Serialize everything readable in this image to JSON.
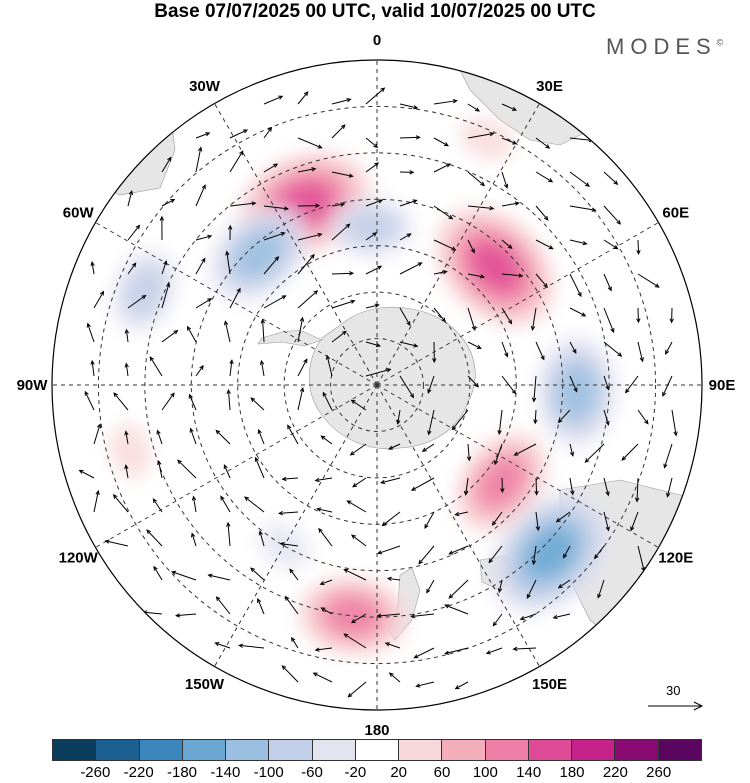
{
  "title": "Base 07/07/2025 00 UTC, valid 10/07/2025 00 UTC",
  "brand": "MODES",
  "brand_mark": "©",
  "map": {
    "projection": "south-polar-stereographic",
    "longitude_labels": [
      "0",
      "30E",
      "60E",
      "90E",
      "120E",
      "150E",
      "180",
      "150W",
      "120W",
      "90W",
      "60W",
      "30W"
    ],
    "land_color": "#e6e6e6",
    "grid_style": "dashed"
  },
  "reference_vector": {
    "value": "30"
  },
  "colorbar": {
    "ticks": [
      "-260",
      "-220",
      "-180",
      "-140",
      "-100",
      "-60",
      "-20",
      "20",
      "60",
      "100",
      "140",
      "180",
      "220",
      "260"
    ],
    "colors": [
      "#0b3d5e",
      "#1a5f8f",
      "#3a86bd",
      "#6aa7d3",
      "#9bbfe0",
      "#c3cfe8",
      "#e4e4f1",
      "#ffffff",
      "#f8d9db",
      "#f4aeba",
      "#ef7fa6",
      "#e04b97",
      "#c4218a",
      "#8a0a73",
      "#5a0660"
    ]
  },
  "anomalies": [
    {
      "name": "pos-1",
      "lon": -22,
      "lat": -48,
      "level": 4
    },
    {
      "name": "neg-1",
      "lon": -42,
      "lat": -52,
      "level": -3
    },
    {
      "name": "neg-2",
      "lon": -2,
      "lat": -56,
      "level": -2
    },
    {
      "name": "pos-2",
      "lon": 45,
      "lat": -54,
      "level": 4
    },
    {
      "name": "neg-3",
      "lon": 92,
      "lat": -47,
      "level": -3
    },
    {
      "name": "pos-3",
      "lon": 128,
      "lat": -56,
      "level": 3
    },
    {
      "name": "neg-4",
      "lon": 134,
      "lat": -38,
      "level": -4
    },
    {
      "name": "pos-4",
      "lon": -174,
      "lat": -40,
      "level": 3
    },
    {
      "name": "neg-5",
      "lon": -68,
      "lat": -36,
      "level": -2
    },
    {
      "name": "pos-5",
      "lon": 24,
      "lat": -32,
      "level": 1
    },
    {
      "name": "pos-6",
      "lon": -105,
      "lat": -35,
      "level": 1
    },
    {
      "name": "neg-6",
      "lon": -150,
      "lat": -50,
      "level": -1
    }
  ]
}
